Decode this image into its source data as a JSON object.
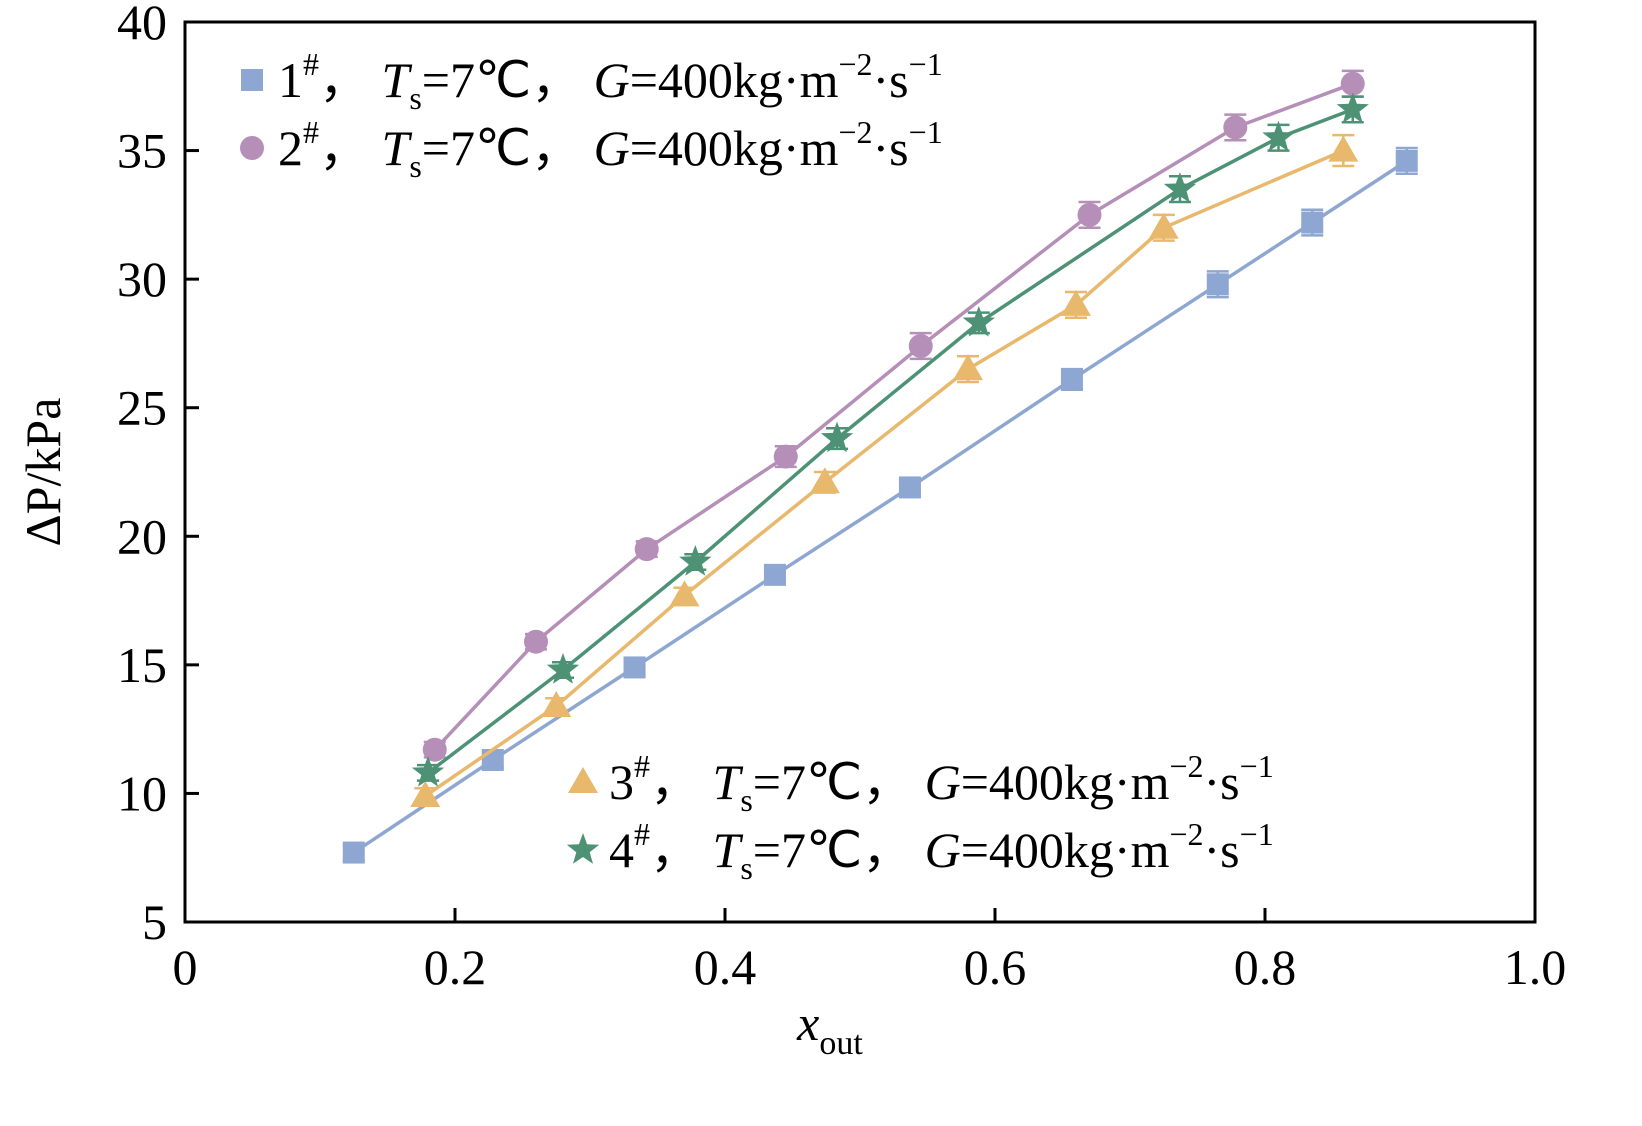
{
  "chart_data": {
    "type": "scatter",
    "xlabel": {
      "main": "x",
      "sub": "out"
    },
    "ylabel": {
      "main": "ΔP",
      "rest": "/kPa"
    },
    "xlim": [
      0,
      1.0
    ],
    "ylim": [
      5,
      40
    ],
    "x_ticks": [
      0,
      0.2,
      0.4,
      0.6,
      0.8,
      1.0
    ],
    "x_tick_labels": [
      "0",
      "0.2",
      "0.4",
      "0.6",
      "0.8",
      "1.0"
    ],
    "y_ticks": [
      5,
      10,
      15,
      20,
      25,
      30,
      35,
      40
    ],
    "y_tick_labels": [
      "5",
      "10",
      "15",
      "20",
      "25",
      "30",
      "35",
      "40"
    ],
    "grid": false,
    "legend": [
      {
        "position": "top-left",
        "entries": [
          0,
          1
        ]
      },
      {
        "position": "bottom-right",
        "entries": [
          2,
          3
        ]
      }
    ],
    "series": [
      {
        "name": "1#",
        "legend_text": {
          "id": "1",
          "sup": "#",
          "ts": "T",
          "ts_sub": "s",
          "ts_val": "=7℃，",
          "g": "G",
          "g_val": "=400kg·m",
          "exp1": "−2",
          "mid": "·s",
          "exp2": "−1",
          "sep": "，"
        },
        "color": "#8EA6D2",
        "marker": "square",
        "x": [
          0.125,
          0.228,
          0.333,
          0.437,
          0.537,
          0.657,
          0.765,
          0.835,
          0.905
        ],
        "y": [
          7.7,
          11.3,
          14.9,
          18.5,
          21.9,
          26.1,
          29.8,
          32.2,
          34.6
        ],
        "err": [
          0.3,
          0.3,
          0.3,
          0.3,
          0.3,
          0.4,
          0.5,
          0.5,
          0.5
        ]
      },
      {
        "name": "2#",
        "legend_text": {
          "id": "2",
          "sup": "#",
          "ts": "T",
          "ts_sub": "s",
          "ts_val": "=7℃，",
          "g": "G",
          "g_val": "=400kg·m",
          "exp1": "−2",
          "mid": "·s",
          "exp2": "−1",
          "sep": "，"
        },
        "color": "#B58FB8",
        "marker": "circle",
        "x": [
          0.185,
          0.26,
          0.342,
          0.445,
          0.545,
          0.67,
          0.778,
          0.865
        ],
        "y": [
          11.7,
          15.9,
          19.5,
          23.1,
          27.4,
          32.5,
          35.9,
          37.6
        ],
        "err": [
          0.3,
          0.3,
          0.3,
          0.4,
          0.5,
          0.5,
          0.5,
          0.5
        ]
      },
      {
        "name": "3#",
        "legend_text": {
          "id": "3",
          "sup": "#",
          "ts": "T",
          "ts_sub": "s",
          "ts_val": "=7℃，",
          "g": "G",
          "g_val": "=400kg·m",
          "exp1": "−2",
          "mid": "·s",
          "exp2": "−1",
          "sep": "，"
        },
        "color": "#E8B86D",
        "marker": "triangle",
        "x": [
          0.178,
          0.275,
          0.37,
          0.474,
          0.58,
          0.66,
          0.725,
          0.858
        ],
        "y": [
          9.9,
          13.4,
          17.7,
          22.1,
          26.5,
          29.0,
          32.0,
          35.0
        ],
        "err": [
          0.3,
          0.3,
          0.3,
          0.4,
          0.5,
          0.5,
          0.5,
          0.6
        ]
      },
      {
        "name": "4#",
        "legend_text": {
          "id": "4",
          "sup": "#",
          "ts": "T",
          "ts_sub": "s",
          "ts_val": "=7℃，",
          "g": "G",
          "g_val": "=400kg·m",
          "exp1": "−2",
          "mid": "·s",
          "exp2": "−1",
          "sep": "，"
        },
        "color": "#4E9276",
        "marker": "star",
        "x": [
          0.18,
          0.28,
          0.378,
          0.483,
          0.588,
          0.737,
          0.81,
          0.865
        ],
        "y": [
          10.8,
          14.8,
          19.0,
          23.8,
          28.3,
          33.5,
          35.5,
          36.6
        ],
        "err": [
          0.3,
          0.3,
          0.3,
          0.4,
          0.4,
          0.5,
          0.5,
          0.5
        ]
      }
    ]
  }
}
